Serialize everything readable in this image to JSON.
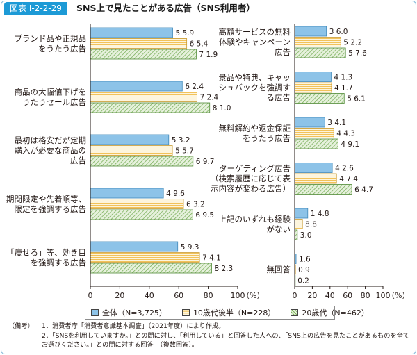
{
  "figure": {
    "label": "図表 Ⅰ-2-2-29",
    "title": "SNS上で見たことがある広告（SNS利用者）"
  },
  "colors": {
    "accent": "#1d9ad6",
    "all": "#8dc3e8",
    "late_teens": "#f7d17a",
    "twenties": "#7db45c"
  },
  "chart_data": [
    {
      "type": "bar",
      "orientation": "horizontal",
      "categories": [
        "ブランド品や正規品\nをうたう広告",
        "商品の大幅値下げを\nうたうセール広告",
        "最初は格安だが定期\n購入が必要な商品の\n広告",
        "期間限定や先着順等、\n限定を強調する広告",
        "「痩せる」等、効き目\nを強調する広告"
      ],
      "series": [
        {
          "name": "全体（N=3,725）",
          "values": [
            55.9,
            62.4,
            53.2,
            49.6,
            59.3
          ]
        },
        {
          "name": "10歳代後半（N=228）",
          "values": [
            65.4,
            72.4,
            55.7,
            63.2,
            74.1
          ]
        },
        {
          "name": "20歳代（N=462）",
          "values": [
            71.9,
            81.0,
            69.7,
            69.5,
            82.3
          ]
        }
      ],
      "xlim": [
        0,
        100
      ],
      "xticks": [
        "0",
        "20",
        "40",
        "60",
        "80",
        "100"
      ],
      "xunit": "（%）"
    },
    {
      "type": "bar",
      "orientation": "horizontal",
      "categories": [
        "高額サービスの無料\n体験やキャンペーン\n広告",
        "景品や特典、キャッ\nシュバックを強調す\nる広告",
        "無料解約や返金保証\nをうたう広告",
        "ターゲティング広告\n（検索履歴に応じて表\n示内容が変わる広告）",
        "上記のいずれも経験\nがない",
        "無回答"
      ],
      "series": [
        {
          "name": "全体（N=3,725）",
          "values": [
            36.0,
            41.3,
            34.1,
            42.6,
            14.8,
            1.6
          ]
        },
        {
          "name": "10歳代後半（N=228）",
          "values": [
            52.2,
            41.7,
            44.3,
            47.4,
            8.8,
            0.9
          ]
        },
        {
          "name": "20歳代（N=462）",
          "values": [
            57.6,
            56.1,
            49.1,
            64.7,
            3.0,
            0.2
          ]
        }
      ],
      "xlim": [
        0,
        100
      ],
      "xticks": [
        "0",
        "20",
        "40",
        "60",
        "80",
        "100"
      ],
      "xunit": "（%）"
    }
  ],
  "legend": [
    {
      "label": "全体（N=3,725）"
    },
    {
      "label": "10歳代後半（N=228）"
    },
    {
      "label": "20歳代（N=462）"
    }
  ],
  "notes": {
    "head": "（備考）",
    "items": [
      "1．消費者庁「消費者意識基本調査」（2021年度）により作成。",
      "2．「SNSを利用していますか。」との問に対し、「利用している」と回答した人への、「SNS上の広告を見たことがあるものを全てお選びください。」との問に対する回答　（複数回答）。"
    ]
  }
}
